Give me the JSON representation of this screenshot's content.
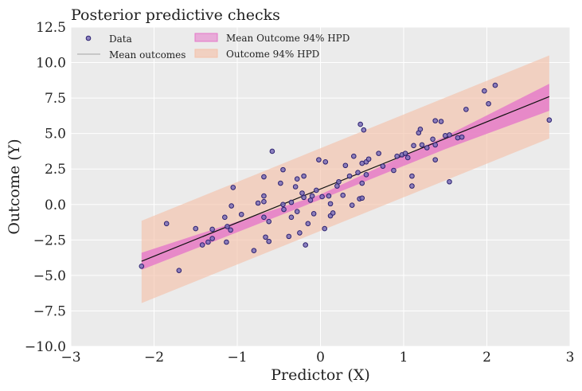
{
  "chart_data": {
    "type": "scatter",
    "title": "Posterior predictive checks",
    "xlabel": "Predictor (X)",
    "ylabel": "Outcome (Y)",
    "xlim": [
      -3,
      3
    ],
    "ylim": [
      -10,
      12.5
    ],
    "xticks": [
      -3,
      -2,
      -1,
      0,
      1,
      2,
      3
    ],
    "xtick_labels": [
      "−3",
      "−2",
      "−1",
      "0",
      "1",
      "2",
      "3"
    ],
    "yticks": [
      -10,
      -7.5,
      -5,
      -2.5,
      0,
      2.5,
      5,
      7.5,
      10,
      12.5
    ],
    "ytick_labels": [
      "−10.0",
      "−7.5",
      "−5.0",
      "−2.5",
      "0.0",
      "2.5",
      "5.0",
      "7.5",
      "10.0",
      "12.5"
    ],
    "grid": true,
    "legend_position": "top-left",
    "colors": {
      "background": "#ebebeb",
      "points": "#7b6fb8",
      "points_edge": "#2c2270",
      "mean_line": "#111111",
      "mean_hpd": "#e577c9",
      "outcome_hpd": "#f4c2aa"
    },
    "series": [
      {
        "name": "Data",
        "kind": "scatter",
        "points": [
          [
            -2.15,
            -4.35
          ],
          [
            -1.85,
            -1.35
          ],
          [
            -1.7,
            -4.65
          ],
          [
            -1.5,
            -1.7
          ],
          [
            -1.42,
            -2.85
          ],
          [
            -1.35,
            -2.65
          ],
          [
            -1.3,
            -2.4
          ],
          [
            -1.3,
            -1.75
          ],
          [
            -1.15,
            -0.9
          ],
          [
            -1.12,
            -1.55
          ],
          [
            -1.13,
            -2.65
          ],
          [
            -1.08,
            -1.8
          ],
          [
            -1.07,
            -0.1
          ],
          [
            -1.05,
            1.2
          ],
          [
            -0.95,
            -0.7
          ],
          [
            -0.8,
            -3.25
          ],
          [
            -0.75,
            0.1
          ],
          [
            -0.68,
            0.2
          ],
          [
            -0.68,
            0.6
          ],
          [
            -0.68,
            -0.9
          ],
          [
            -0.68,
            1.95
          ],
          [
            -0.66,
            -2.3
          ],
          [
            -0.62,
            -1.2
          ],
          [
            -0.62,
            -2.6
          ],
          [
            -0.58,
            3.75
          ],
          [
            -0.48,
            1.5
          ],
          [
            -0.45,
            2.45
          ],
          [
            -0.45,
            0.0
          ],
          [
            -0.44,
            -0.35
          ],
          [
            -0.38,
            -2.25
          ],
          [
            -0.35,
            0.15
          ],
          [
            -0.35,
            -0.9
          ],
          [
            -0.3,
            1.25
          ],
          [
            -0.28,
            1.8
          ],
          [
            -0.28,
            -0.5
          ],
          [
            -0.25,
            -2.0
          ],
          [
            -0.22,
            0.8
          ],
          [
            -0.2,
            2.0
          ],
          [
            -0.2,
            0.5
          ],
          [
            -0.18,
            -2.85
          ],
          [
            -0.15,
            -1.35
          ],
          [
            -0.12,
            0.3
          ],
          [
            -0.1,
            0.6
          ],
          [
            -0.08,
            -0.65
          ],
          [
            -0.05,
            1.0
          ],
          [
            -0.02,
            3.15
          ],
          [
            0.02,
            0.55
          ],
          [
            0.05,
            -1.7
          ],
          [
            0.06,
            3.0
          ],
          [
            0.1,
            0.6
          ],
          [
            0.12,
            0.05
          ],
          [
            0.12,
            -0.8
          ],
          [
            0.15,
            -0.6
          ],
          [
            0.2,
            1.3
          ],
          [
            0.22,
            1.6
          ],
          [
            0.27,
            0.65
          ],
          [
            0.3,
            2.75
          ],
          [
            0.35,
            2.0
          ],
          [
            0.38,
            -0.05
          ],
          [
            0.4,
            3.4
          ],
          [
            0.45,
            2.25
          ],
          [
            0.47,
            0.4
          ],
          [
            0.48,
            5.65
          ],
          [
            0.5,
            0.45
          ],
          [
            0.5,
            1.5
          ],
          [
            0.5,
            2.9
          ],
          [
            0.52,
            5.25
          ],
          [
            0.55,
            2.1
          ],
          [
            0.55,
            3.0
          ],
          [
            0.58,
            3.2
          ],
          [
            0.7,
            3.6
          ],
          [
            0.75,
            2.7
          ],
          [
            0.88,
            2.4
          ],
          [
            0.92,
            3.4
          ],
          [
            0.98,
            3.5
          ],
          [
            1.02,
            3.6
          ],
          [
            1.05,
            3.3
          ],
          [
            1.1,
            2.0
          ],
          [
            1.1,
            1.3
          ],
          [
            1.12,
            4.15
          ],
          [
            1.18,
            5.05
          ],
          [
            1.2,
            5.3
          ],
          [
            1.22,
            4.2
          ],
          [
            1.28,
            4.0
          ],
          [
            1.35,
            4.6
          ],
          [
            1.38,
            3.15
          ],
          [
            1.38,
            4.2
          ],
          [
            1.38,
            5.9
          ],
          [
            1.45,
            5.85
          ],
          [
            1.5,
            4.85
          ],
          [
            1.55,
            1.6
          ],
          [
            1.55,
            4.9
          ],
          [
            1.65,
            4.7
          ],
          [
            1.7,
            4.75
          ],
          [
            1.75,
            6.7
          ],
          [
            1.97,
            8.0
          ],
          [
            2.02,
            7.1
          ],
          [
            2.1,
            8.4
          ],
          [
            2.75,
            5.95
          ]
        ]
      },
      {
        "name": "Mean outcomes",
        "kind": "line",
        "points": [
          [
            -2.15,
            -4.0
          ],
          [
            2.75,
            7.6
          ]
        ]
      },
      {
        "name": "Mean Outcome 94% HPD",
        "kind": "band",
        "x": [
          -2.15,
          0,
          1.5,
          2.75
        ],
        "lower": [
          -4.6,
          0.35,
          3.9,
          6.6
        ],
        "upper": [
          -3.4,
          0.7,
          4.8,
          8.5
        ]
      },
      {
        "name": "Outcome 94% HPD",
        "kind": "band",
        "x": [
          -2.15,
          2.75
        ],
        "lower": [
          -6.95,
          4.65
        ],
        "upper": [
          -1.15,
          10.5
        ]
      }
    ]
  }
}
